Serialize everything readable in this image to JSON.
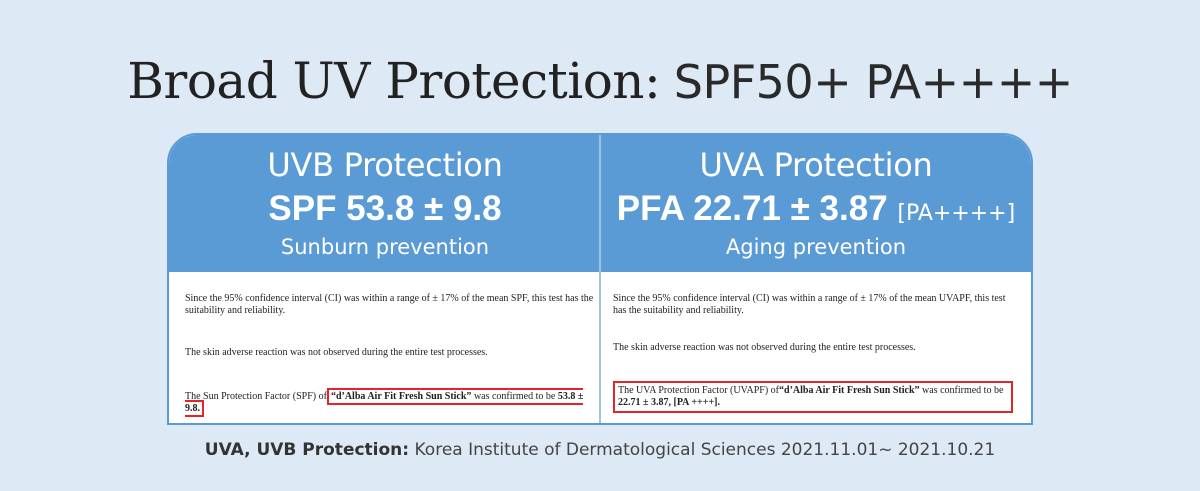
{
  "title": {
    "lead": "Broad UV Protection:",
    "tail": "SPF50+ PA++++"
  },
  "uvb": {
    "title": "UVB Protection",
    "value": "SPF 53.8 ± 9.8",
    "subtitle": "Sunburn prevention",
    "p1": "Since the 95% confidence interval (CI) was within a range of ± 17% of the mean SPF, this test has the suitability and reliability.",
    "p2": "The skin adverse reaction was not observed during the entire test processes.",
    "p3_pre": "The Sun Protection Factor (SPF) of",
    "p3_product": "“d’Alba Air Fit Fresh Sun Stick”",
    "p3_mid": " was confirmed to be ",
    "p3_value": "53.8 ± 9.8."
  },
  "uva": {
    "title": "UVA Protection",
    "value": "PFA 22.71 ± 3.87",
    "tag": "[PA++++]",
    "subtitle": "Aging prevention",
    "p1": "Since the 95% confidence interval (CI) was within a range of ± 17% of the mean UVAPF, this test has the suitability and reliability.",
    "p2": "The skin adverse reaction was not observed during the entire test processes.",
    "p3_pre": "The UVA Protection Factor (UVAPF) of",
    "p3_product": "“d’Alba Air Fit Fresh Sun Stick”",
    "p3_mid": " was confirmed to be ",
    "p3_value": "22.71 ± 3.87, [PA ++++]."
  },
  "footer": {
    "label": "UVA, UVB Protection:",
    "text": " Korea Institute of Dermatological Sciences 2021.11.01~ 2021.10.21"
  },
  "colors": {
    "accent": "#5b9bd5",
    "highlight": "#e0262b",
    "background": "#dde9f5"
  }
}
